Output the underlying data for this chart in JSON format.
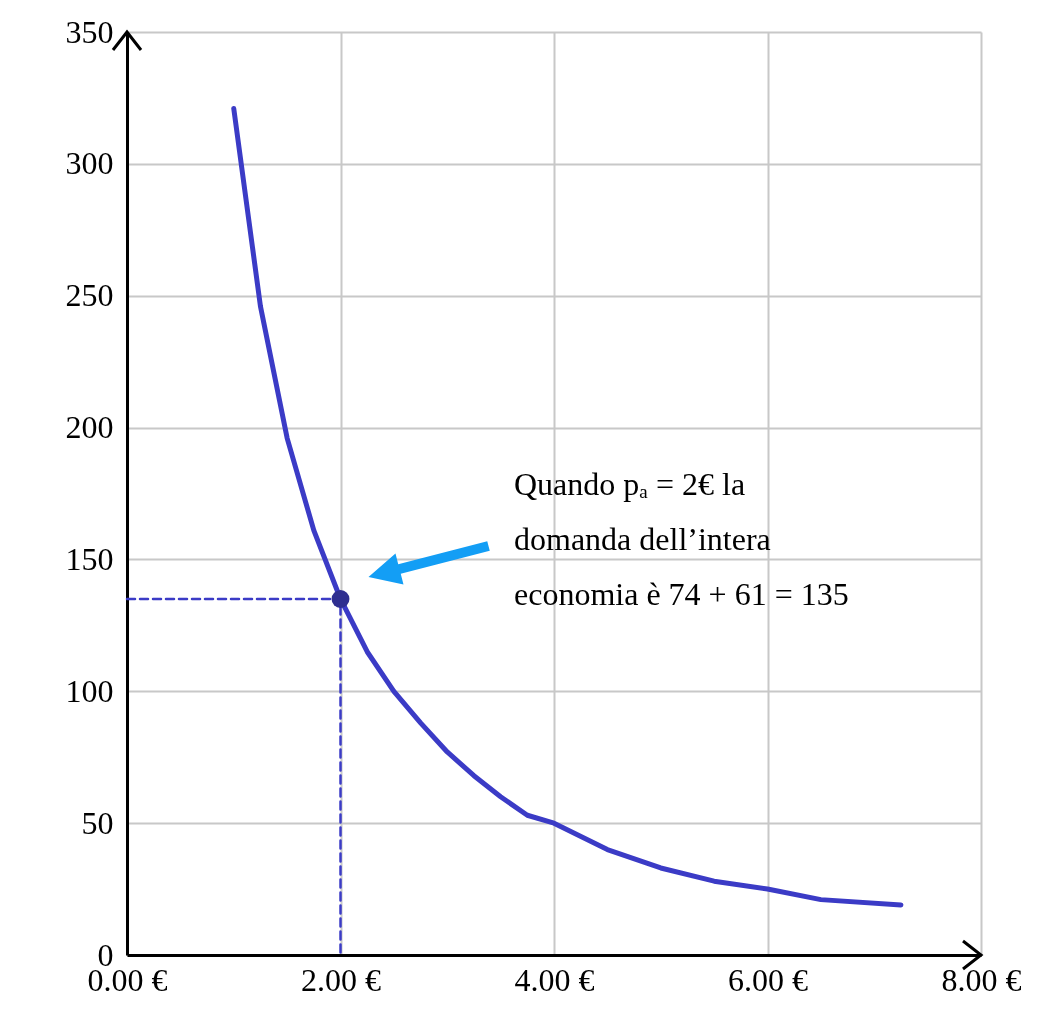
{
  "chart_data": {
    "type": "line",
    "xlim": [
      0,
      8
    ],
    "xticks": [
      {
        "value": 0,
        "label": "0.00 €"
      },
      {
        "value": 2,
        "label": "2.00 €"
      },
      {
        "value": 4,
        "label": "4.00 €"
      },
      {
        "value": 6,
        "label": "6.00 €"
      },
      {
        "value": 8,
        "label": "8.00 €"
      }
    ],
    "ylim": [
      0,
      350
    ],
    "yticks": [
      0,
      50,
      100,
      150,
      200,
      250,
      300,
      350
    ],
    "grid": true,
    "series": [
      {
        "color": "#3b3bc6",
        "line_style": "solid",
        "x": [
          1.0,
          1.25,
          1.5,
          1.75,
          2.0,
          2.25,
          2.5,
          2.75,
          3.0,
          3.25,
          3.5,
          3.75,
          4.0,
          4.5,
          5.0,
          5.5,
          6.0,
          6.5,
          7.25
        ],
        "values": [
          321,
          246,
          196,
          161,
          135,
          115,
          100,
          88,
          77,
          68,
          60,
          53,
          50,
          40,
          33,
          28,
          25,
          21,
          19
        ]
      },
      {
        "type": "line",
        "color": "#3b3bc6",
        "line_style": "dashed",
        "x": [
          0,
          2,
          2
        ],
        "values": [
          135,
          135,
          0
        ]
      },
      {
        "type": "scatter",
        "color": "#2e2e90",
        "marker": "circle",
        "x": [
          2
        ],
        "values": [
          135
        ]
      }
    ],
    "annotations": [
      "Quando pₐ = 2€ la\ndomanda dell’intera\neconomia è 74 + 61 = 135"
    ]
  }
}
